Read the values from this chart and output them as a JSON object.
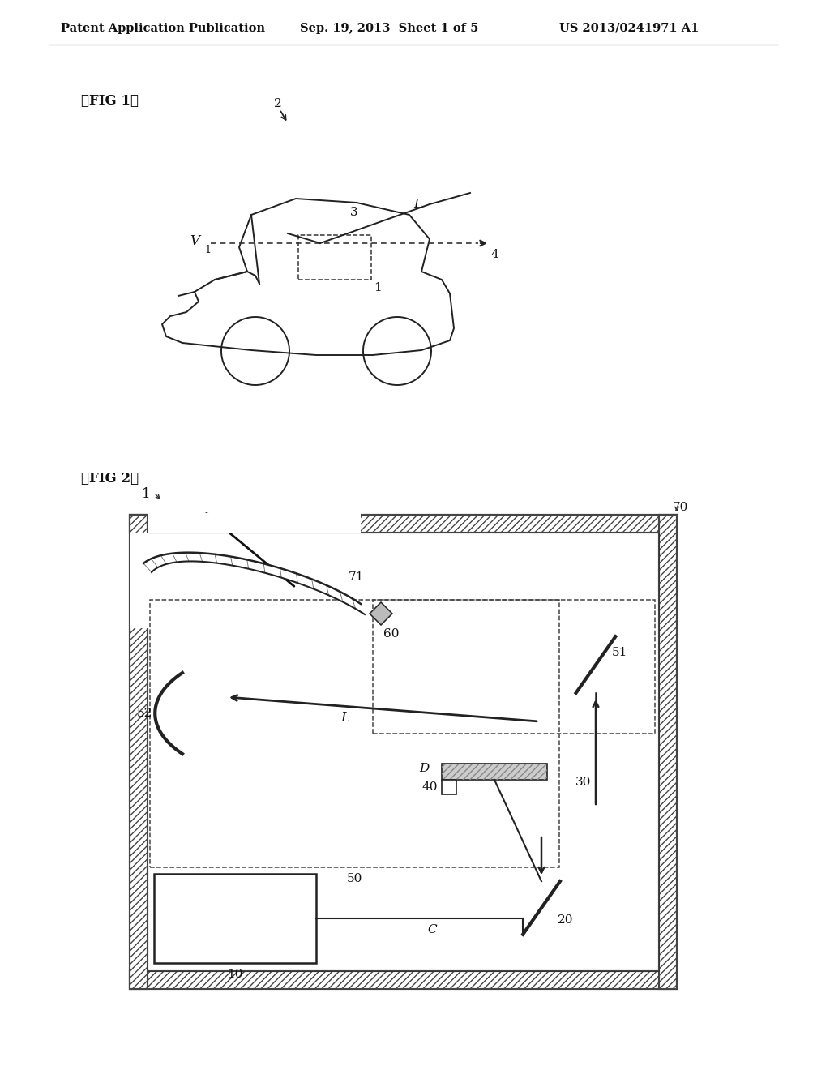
{
  "bg_color": "#ffffff",
  "header_left": "Patent Application Publication",
  "header_mid": "Sep. 19, 2013  Sheet 1 of 5",
  "header_right": "US 2013/0241971 A1",
  "fig1_label": "【FIG 1】",
  "fig2_label": "【FIG 2】"
}
